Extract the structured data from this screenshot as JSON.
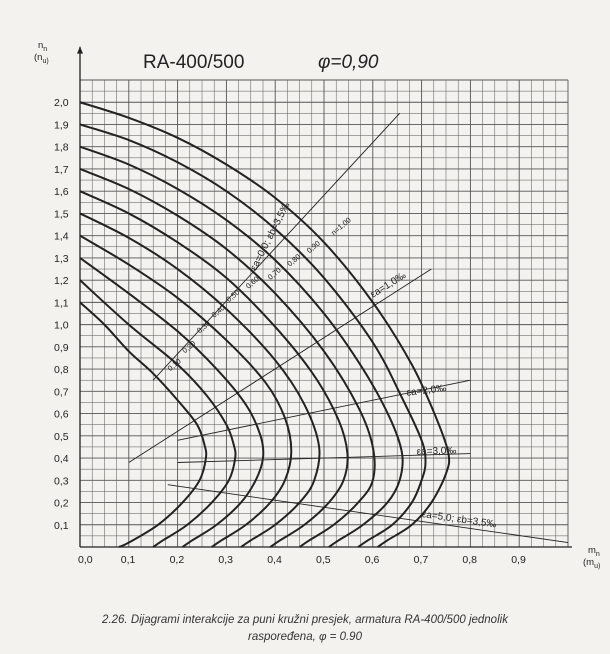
{
  "chart_data": {
    "type": "line",
    "title": "RA-400/500",
    "subtitle": "φ=0,90",
    "xlabel": "m",
    "xlabel_sub": "n",
    "xlabel_alt": "(m",
    "xlabel_alt_sub": "u",
    "ylabel": "n",
    "ylabel_sub": "n",
    "ylabel_alt": "(n",
    "ylabel_alt_sub": "u",
    "xlim": [
      0,
      1.0
    ],
    "ylim": [
      0,
      2.1
    ],
    "grid": true,
    "x_ticks": [
      "0,0",
      "0,1",
      "0,2",
      "0,3",
      "0,4",
      "0,5",
      "0,6",
      "0,7",
      "0,8",
      "0,9"
    ],
    "y_ticks": [
      "0,1",
      "0,2",
      "0,3",
      "0,4",
      "0,5",
      "0,6",
      "0,7",
      "0,8",
      "0,9",
      "1,0",
      "1,1",
      "1,2",
      "1,3",
      "1,4",
      "1,5",
      "1,6",
      "1,7",
      "1,8",
      "1,9",
      "2,0"
    ],
    "series": [
      {
        "name": "0,10",
        "values": [
          [
            0,
            1.1
          ],
          [
            0.05,
            1.0
          ],
          [
            0.1,
            0.88
          ],
          [
            0.15,
            0.78
          ],
          [
            0.2,
            0.66
          ],
          [
            0.24,
            0.55
          ],
          [
            0.255,
            0.46
          ],
          [
            0.258,
            0.4
          ],
          [
            0.245,
            0.3
          ],
          [
            0.21,
            0.2
          ],
          [
            0.16,
            0.1
          ],
          [
            0.1,
            0.02
          ],
          [
            0.08,
            0
          ]
        ]
      },
      {
        "name": "0,20",
        "values": [
          [
            0,
            1.2
          ],
          [
            0.1,
            1.0
          ],
          [
            0.2,
            0.82
          ],
          [
            0.26,
            0.68
          ],
          [
            0.3,
            0.55
          ],
          [
            0.315,
            0.46
          ],
          [
            0.318,
            0.4
          ],
          [
            0.305,
            0.3
          ],
          [
            0.27,
            0.2
          ],
          [
            0.22,
            0.1
          ],
          [
            0.17,
            0.03
          ],
          [
            0.15,
            0
          ]
        ]
      },
      {
        "name": "0,30",
        "values": [
          [
            0,
            1.3
          ],
          [
            0.1,
            1.14
          ],
          [
            0.2,
            0.97
          ],
          [
            0.28,
            0.8
          ],
          [
            0.34,
            0.64
          ],
          [
            0.37,
            0.5
          ],
          [
            0.375,
            0.4
          ],
          [
            0.36,
            0.3
          ],
          [
            0.33,
            0.2
          ],
          [
            0.28,
            0.1
          ],
          [
            0.23,
            0.03
          ],
          [
            0.21,
            0
          ]
        ]
      },
      {
        "name": "0,40",
        "values": [
          [
            0,
            1.4
          ],
          [
            0.1,
            1.27
          ],
          [
            0.2,
            1.12
          ],
          [
            0.3,
            0.93
          ],
          [
            0.38,
            0.74
          ],
          [
            0.42,
            0.58
          ],
          [
            0.433,
            0.43
          ],
          [
            0.42,
            0.3
          ],
          [
            0.39,
            0.2
          ],
          [
            0.34,
            0.1
          ],
          [
            0.29,
            0.03
          ],
          [
            0.27,
            0
          ]
        ]
      },
      {
        "name": "0,50",
        "values": [
          [
            0,
            1.5
          ],
          [
            0.1,
            1.39
          ],
          [
            0.2,
            1.25
          ],
          [
            0.3,
            1.07
          ],
          [
            0.4,
            0.84
          ],
          [
            0.46,
            0.64
          ],
          [
            0.49,
            0.45
          ],
          [
            0.48,
            0.3
          ],
          [
            0.45,
            0.2
          ],
          [
            0.4,
            0.1
          ],
          [
            0.35,
            0.03
          ],
          [
            0.33,
            0
          ]
        ]
      },
      {
        "name": "0,60",
        "values": [
          [
            0,
            1.6
          ],
          [
            0.1,
            1.5
          ],
          [
            0.2,
            1.37
          ],
          [
            0.3,
            1.21
          ],
          [
            0.4,
            0.99
          ],
          [
            0.48,
            0.77
          ],
          [
            0.53,
            0.57
          ],
          [
            0.548,
            0.42
          ],
          [
            0.54,
            0.3
          ],
          [
            0.51,
            0.2
          ],
          [
            0.46,
            0.1
          ],
          [
            0.41,
            0.03
          ],
          [
            0.39,
            0
          ]
        ]
      },
      {
        "name": "0,70",
        "values": [
          [
            0,
            1.7
          ],
          [
            0.1,
            1.61
          ],
          [
            0.2,
            1.49
          ],
          [
            0.3,
            1.34
          ],
          [
            0.4,
            1.14
          ],
          [
            0.5,
            0.88
          ],
          [
            0.57,
            0.63
          ],
          [
            0.6,
            0.45
          ],
          [
            0.6,
            0.3
          ],
          [
            0.57,
            0.2
          ],
          [
            0.52,
            0.1
          ],
          [
            0.47,
            0.03
          ],
          [
            0.45,
            0
          ]
        ]
      },
      {
        "name": "0,80",
        "values": [
          [
            0,
            1.8
          ],
          [
            0.1,
            1.72
          ],
          [
            0.2,
            1.61
          ],
          [
            0.3,
            1.47
          ],
          [
            0.4,
            1.29
          ],
          [
            0.5,
            1.05
          ],
          [
            0.58,
            0.8
          ],
          [
            0.635,
            0.58
          ],
          [
            0.66,
            0.42
          ],
          [
            0.655,
            0.3
          ],
          [
            0.63,
            0.2
          ],
          [
            0.58,
            0.1
          ],
          [
            0.53,
            0.03
          ],
          [
            0.51,
            0
          ]
        ]
      },
      {
        "name": "0,90",
        "values": [
          [
            0,
            1.9
          ],
          [
            0.1,
            1.83
          ],
          [
            0.2,
            1.73
          ],
          [
            0.3,
            1.6
          ],
          [
            0.4,
            1.43
          ],
          [
            0.5,
            1.21
          ],
          [
            0.6,
            0.92
          ],
          [
            0.66,
            0.67
          ],
          [
            0.7,
            0.48
          ],
          [
            0.708,
            0.38
          ],
          [
            0.7,
            0.3
          ],
          [
            0.68,
            0.2
          ],
          [
            0.64,
            0.1
          ],
          [
            0.59,
            0.03
          ],
          [
            0.57,
            0
          ]
        ]
      },
      {
        "name": "n=1,00",
        "values": [
          [
            0,
            2.0
          ],
          [
            0.1,
            1.93
          ],
          [
            0.2,
            1.84
          ],
          [
            0.3,
            1.72
          ],
          [
            0.4,
            1.57
          ],
          [
            0.5,
            1.37
          ],
          [
            0.6,
            1.1
          ],
          [
            0.68,
            0.82
          ],
          [
            0.73,
            0.58
          ],
          [
            0.755,
            0.42
          ],
          [
            0.75,
            0.33
          ],
          [
            0.72,
            0.2
          ],
          [
            0.68,
            0.1
          ],
          [
            0.63,
            0.03
          ],
          [
            0.61,
            0
          ]
        ]
      }
    ],
    "strain_lines": [
      {
        "label": "εa=0,0; εb=3,5‰",
        "from": [
          0.15,
          0.75
        ],
        "to": [
          0.655,
          1.95
        ]
      },
      {
        "label": "εa=1,0‰",
        "from": [
          0.1,
          0.38
        ],
        "to": [
          0.72,
          1.25
        ]
      },
      {
        "label": "εa=2,0‰",
        "from": [
          0.2,
          0.48
        ],
        "to": [
          0.8,
          0.75
        ]
      },
      {
        "label": "εa=3,0‰",
        "from": [
          0.2,
          0.38
        ],
        "to": [
          0.8,
          0.42
        ]
      },
      {
        "label": "εa=5,0; εb=3,5‰",
        "from": [
          0.18,
          0.28
        ],
        "to": [
          1.0,
          0.02
        ]
      }
    ]
  },
  "caption_line1": "2.26. Dijagrami interakcije za puni kružni presjek, armatura RA-400/500 jednolik",
  "caption_line2": "raspoređena, φ = 0.90",
  "colors": {
    "ink": "#222222",
    "grid": "#555555",
    "paper": "#f3f2ee"
  }
}
